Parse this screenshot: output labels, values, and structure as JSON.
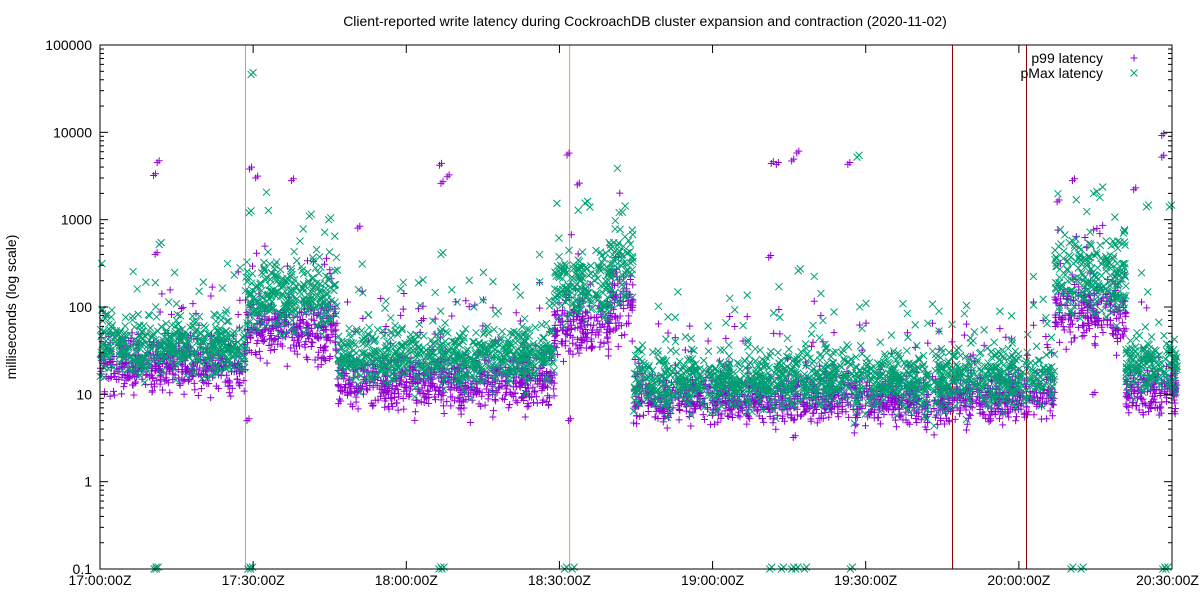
{
  "chart_data": {
    "type": "scatter",
    "title": "Client-reported write latency during CockroachDB cluster expansion and contraction (2020-11-02)",
    "xlabel": "",
    "ylabel": "milliseconds (log scale)",
    "y_scale": "log",
    "ylim": [
      0.1,
      100000
    ],
    "xlim": [
      "17:00:00Z",
      "20:30:00Z"
    ],
    "y_ticks": [
      {
        "value": 0.1,
        "label": "0.1"
      },
      {
        "value": 1,
        "label": "1"
      },
      {
        "value": 10,
        "label": "10"
      },
      {
        "value": 100,
        "label": "100"
      },
      {
        "value": 1000,
        "label": "1000"
      },
      {
        "value": 10000,
        "label": "10000"
      },
      {
        "value": 100000,
        "label": "100000"
      }
    ],
    "x_ticks": [
      {
        "minutes": 0,
        "label": "17:00:00Z"
      },
      {
        "minutes": 30,
        "label": "17:30:00Z"
      },
      {
        "minutes": 60,
        "label": "18:00:00Z"
      },
      {
        "minutes": 90,
        "label": "18:30:00Z"
      },
      {
        "minutes": 120,
        "label": "19:00:00Z"
      },
      {
        "minutes": 150,
        "label": "19:30:00Z"
      },
      {
        "minutes": 180,
        "label": "20:00:00Z"
      },
      {
        "minutes": 210,
        "label": "20:30:00Z"
      }
    ],
    "grid": false,
    "legend_position": "top-right",
    "event_lines": [
      {
        "time": "17:28:30Z",
        "color": "#e8975a"
      },
      {
        "time": "18:32:00Z",
        "color": "#e8975a"
      },
      {
        "time": "19:47:00Z",
        "color": "#8b0000"
      },
      {
        "time": "20:01:30Z",
        "color": "#8b0000"
      }
    ],
    "series": [
      {
        "name": "p99 latency",
        "marker": "plus",
        "color": "#9400d3",
        "segments": [
          {
            "start": 0,
            "end": 28.5,
            "center": 22,
            "spread": 0.28
          },
          {
            "start": 28.5,
            "end": 46.5,
            "center": 55,
            "spread": 0.3
          },
          {
            "start": 46.5,
            "end": 89,
            "center": 14,
            "spread": 0.28
          },
          {
            "start": 89,
            "end": 100,
            "center": 60,
            "spread": 0.32
          },
          {
            "start": 100,
            "end": 104.5,
            "center": 110,
            "spread": 0.45
          },
          {
            "start": 104.5,
            "end": 126,
            "center": 9,
            "spread": 0.25
          },
          {
            "start": 126,
            "end": 187,
            "center": 9,
            "spread": 0.25
          },
          {
            "start": 187,
            "end": 201,
            "center": 90,
            "spread": 0.35
          },
          {
            "start": 201,
            "end": 211,
            "center": 11,
            "spread": 0.25
          }
        ],
        "outliers": [
          {
            "x": 10.5,
            "y": 3200
          },
          {
            "x": 10.8,
            "y": 400
          },
          {
            "x": 11.2,
            "y": 4500
          },
          {
            "x": 28.8,
            "y": 5
          },
          {
            "x": 29.3,
            "y": 3800
          },
          {
            "x": 30.5,
            "y": 3000
          },
          {
            "x": 37.5,
            "y": 2800
          },
          {
            "x": 50.5,
            "y": 800
          },
          {
            "x": 63,
            "y": 70
          },
          {
            "x": 66.5,
            "y": 4200
          },
          {
            "x": 66.8,
            "y": 2600
          },
          {
            "x": 68,
            "y": 3100
          },
          {
            "x": 91.5,
            "y": 5500
          },
          {
            "x": 91.8,
            "y": 5
          },
          {
            "x": 93.5,
            "y": 2500
          },
          {
            "x": 131.5,
            "y": 4400
          },
          {
            "x": 132.5,
            "y": 4300
          },
          {
            "x": 131,
            "y": 370
          },
          {
            "x": 135.5,
            "y": 4700
          },
          {
            "x": 136.5,
            "y": 5800
          },
          {
            "x": 135.8,
            "y": 3.2
          },
          {
            "x": 146.5,
            "y": 4300
          },
          {
            "x": 187.5,
            "y": 1600
          },
          {
            "x": 190.5,
            "y": 2800
          },
          {
            "x": 194.5,
            "y": 10
          },
          {
            "x": 202.5,
            "y": 2200
          },
          {
            "x": 207.5,
            "y": 5.8
          },
          {
            "x": 208,
            "y": 9200
          },
          {
            "x": 208,
            "y": 5200
          }
        ]
      },
      {
        "name": "pMax latency",
        "marker": "cross",
        "color": "#009e73",
        "segments": [
          {
            "start": 0,
            "end": 28.5,
            "center": 35,
            "spread": 0.3
          },
          {
            "start": 28.5,
            "end": 46.5,
            "center": 130,
            "spread": 0.35
          },
          {
            "start": 46.5,
            "end": 89,
            "center": 28,
            "spread": 0.3
          },
          {
            "start": 89,
            "end": 100,
            "center": 180,
            "spread": 0.38
          },
          {
            "start": 100,
            "end": 104.5,
            "center": 300,
            "spread": 0.45
          },
          {
            "start": 104.5,
            "end": 126,
            "center": 14,
            "spread": 0.3
          },
          {
            "start": 126,
            "end": 187,
            "center": 15,
            "spread": 0.32
          },
          {
            "start": 187,
            "end": 201,
            "center": 230,
            "spread": 0.4
          },
          {
            "start": 201,
            "end": 211,
            "center": 22,
            "spread": 0.32
          }
        ],
        "outliers": [
          {
            "x": 10.6,
            "y": 0.1
          },
          {
            "x": 11,
            "y": 0.1
          },
          {
            "x": 11.6,
            "y": 520
          },
          {
            "x": 29,
            "y": 0.1
          },
          {
            "x": 29.5,
            "y": 0.1
          },
          {
            "x": 29.6,
            "y": 46000
          },
          {
            "x": 29.2,
            "y": 1200
          },
          {
            "x": 41,
            "y": 1100
          },
          {
            "x": 44.8,
            "y": 1000
          },
          {
            "x": 66.4,
            "y": 0.1
          },
          {
            "x": 67,
            "y": 0.1
          },
          {
            "x": 66.8,
            "y": 400
          },
          {
            "x": 91,
            "y": 0.1
          },
          {
            "x": 92.5,
            "y": 0.1
          },
          {
            "x": 131.2,
            "y": 0.1
          },
          {
            "x": 133.5,
            "y": 0.1
          },
          {
            "x": 135.5,
            "y": 0.1
          },
          {
            "x": 136.3,
            "y": 0.1
          },
          {
            "x": 138,
            "y": 0.1
          },
          {
            "x": 136.8,
            "y": 260
          },
          {
            "x": 147,
            "y": 0.1
          },
          {
            "x": 148.3,
            "y": 5200
          },
          {
            "x": 190.2,
            "y": 0.1
          },
          {
            "x": 192.2,
            "y": 0.1
          },
          {
            "x": 205,
            "y": 1400
          },
          {
            "x": 208.2,
            "y": 0.1
          },
          {
            "x": 208.8,
            "y": 0.1
          },
          {
            "x": 209.5,
            "y": 1400
          }
        ]
      }
    ]
  }
}
